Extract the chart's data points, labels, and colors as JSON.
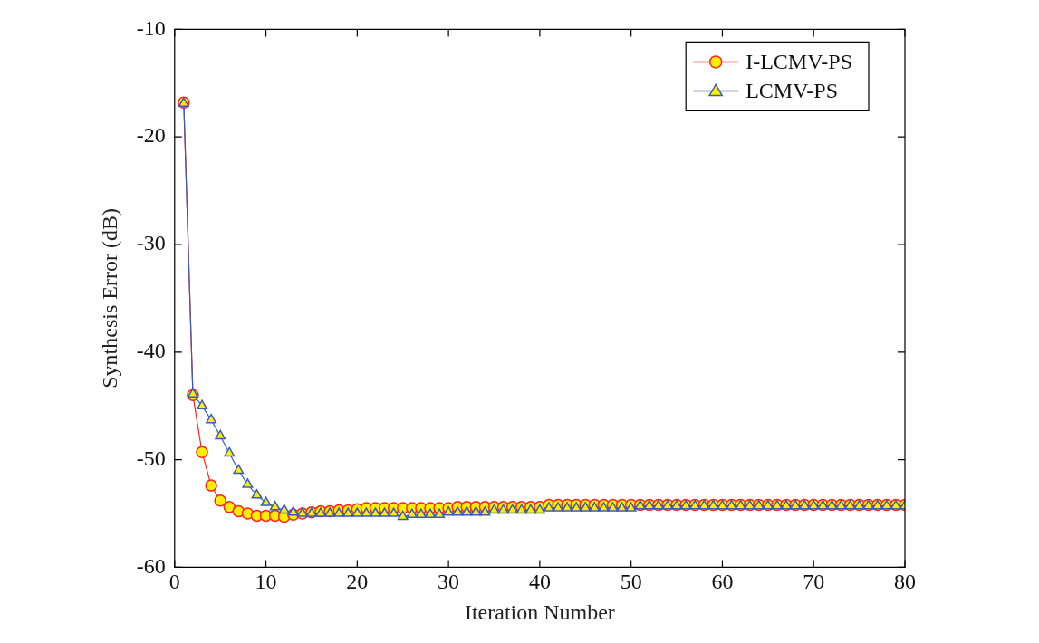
{
  "chart_data": {
    "type": "line",
    "xlabel": "Iteration Number",
    "ylabel": "Synthesis Error (dB)",
    "x": [
      1,
      2,
      3,
      4,
      5,
      6,
      7,
      8,
      9,
      10,
      11,
      12,
      13,
      14,
      15,
      16,
      17,
      18,
      19,
      20,
      21,
      22,
      23,
      24,
      25,
      26,
      27,
      28,
      29,
      30,
      31,
      32,
      33,
      34,
      35,
      36,
      37,
      38,
      39,
      40,
      41,
      42,
      43,
      44,
      45,
      46,
      47,
      48,
      49,
      50,
      51,
      52,
      53,
      54,
      55,
      56,
      57,
      58,
      59,
      60,
      61,
      62,
      63,
      64,
      65,
      66,
      67,
      68,
      69,
      70,
      71,
      72,
      73,
      74,
      75,
      76,
      77,
      78,
      79,
      80
    ],
    "series": [
      {
        "name": "I-LCMV-PS",
        "color": "#ff2020",
        "marker": "circle",
        "values": [
          -16.8,
          -44,
          -49.3,
          -52.4,
          -53.8,
          -54.4,
          -54.8,
          -55,
          -55.2,
          -55.2,
          -55.2,
          -55.3,
          -55.1,
          -55,
          -54.9,
          -54.8,
          -54.8,
          -54.7,
          -54.7,
          -54.6,
          -54.5,
          -54.5,
          -54.5,
          -54.5,
          -54.5,
          -54.5,
          -54.5,
          -54.5,
          -54.5,
          -54.5,
          -54.4,
          -54.4,
          -54.4,
          -54.4,
          -54.4,
          -54.4,
          -54.4,
          -54.4,
          -54.4,
          -54.4,
          -54.2,
          -54.2,
          -54.2,
          -54.2,
          -54.2,
          -54.2,
          -54.2,
          -54.2,
          -54.2,
          -54.2,
          -54.2,
          -54.2,
          -54.2,
          -54.2,
          -54.2,
          -54.2,
          -54.2,
          -54.2,
          -54.2,
          -54.2,
          -54.2,
          -54.2,
          -54.2,
          -54.2,
          -54.2,
          -54.2,
          -54.2,
          -54.2,
          -54.2,
          -54.2,
          -54.2,
          -54.2,
          -54.2,
          -54.2,
          -54.2,
          -54.2,
          -54.2,
          -54.2,
          -54.2,
          -54.2
        ]
      },
      {
        "name": "LCMV-PS",
        "color": "#3a5cb8",
        "marker": "triangle",
        "values": [
          -16.9,
          -43.9,
          -45,
          -46.3,
          -47.8,
          -49.4,
          -51,
          -52.3,
          -53.3,
          -54,
          -54.4,
          -54.7,
          -54.9,
          -55,
          -55,
          -55,
          -55,
          -55,
          -55,
          -55,
          -55,
          -55,
          -55,
          -55,
          -55.3,
          -55.1,
          -55.1,
          -55.1,
          -55.1,
          -54.9,
          -54.9,
          -54.9,
          -54.9,
          -54.9,
          -54.7,
          -54.7,
          -54.7,
          -54.7,
          -54.7,
          -54.7,
          -54.5,
          -54.5,
          -54.5,
          -54.5,
          -54.5,
          -54.5,
          -54.5,
          -54.5,
          -54.5,
          -54.5,
          -54.3,
          -54.3,
          -54.3,
          -54.3,
          -54.3,
          -54.3,
          -54.3,
          -54.3,
          -54.3,
          -54.3,
          -54.3,
          -54.3,
          -54.3,
          -54.3,
          -54.3,
          -54.3,
          -54.3,
          -54.3,
          -54.3,
          -54.3,
          -54.3,
          -54.3,
          -54.3,
          -54.3,
          -54.3,
          -54.3,
          -54.3,
          -54.3,
          -54.3,
          -54.3
        ]
      }
    ],
    "xlim": [
      0,
      80
    ],
    "xticks": [
      0,
      10,
      20,
      30,
      40,
      50,
      60,
      70,
      80
    ],
    "ylim": [
      -60,
      -10
    ],
    "yticks": [
      -60,
      -50,
      -40,
      -30,
      -20,
      -10
    ],
    "grid": false,
    "legend": "top right"
  }
}
